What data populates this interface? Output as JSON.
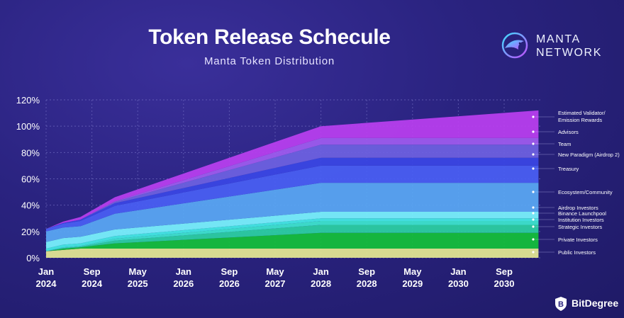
{
  "header": {
    "title": "Token Release Schecule",
    "subtitle": "Manta Token Distribution"
  },
  "logo": {
    "line1": "MANTA",
    "line2": "NETWORK"
  },
  "footer": {
    "brand": "BitDegree"
  },
  "colors": {
    "background": "#2a2380",
    "grid": "#8a86d6"
  },
  "chart_data": {
    "type": "area",
    "title": "Token Release Schecule",
    "subtitle": "Manta Token Distribution",
    "xlabel": "",
    "ylabel": "",
    "ylim": [
      0,
      120
    ],
    "yticks": [
      "0%",
      "20%",
      "40%",
      "60%",
      "80%",
      "100%",
      "120%"
    ],
    "xticks": [
      {
        "month": "Jan",
        "year": "2024",
        "t": 0
      },
      {
        "month": "Sep",
        "year": "2024",
        "t": 8
      },
      {
        "month": "May",
        "year": "2025",
        "t": 16
      },
      {
        "month": "Jan",
        "year": "2026",
        "t": 24
      },
      {
        "month": "Sep",
        "year": "2026",
        "t": 32
      },
      {
        "month": "May",
        "year": "2027",
        "t": 40
      },
      {
        "month": "Jan",
        "year": "2028",
        "t": 48
      },
      {
        "month": "Sep",
        "year": "2028",
        "t": 56
      },
      {
        "month": "May",
        "year": "2029",
        "t": 64
      },
      {
        "month": "Jan",
        "year": "2030",
        "t": 72
      },
      {
        "month": "Sep",
        "year": "2030",
        "t": 80
      }
    ],
    "x_months": [
      0,
      3,
      6,
      12,
      48,
      86
    ],
    "series": [
      {
        "name": "Public Investors",
        "color": "#e6ea92",
        "values": [
          5,
          6,
          7,
          7,
          7,
          7
        ]
      },
      {
        "name": "Private Investors",
        "color": "#14c23a",
        "values": [
          0,
          1,
          1,
          4,
          12,
          12
        ]
      },
      {
        "name": "Strategic Investors",
        "color": "#2bd3a3",
        "values": [
          0,
          0.5,
          0.5,
          2,
          6,
          6
        ]
      },
      {
        "name": "Institution Investors",
        "color": "#3ee8cf",
        "values": [
          0,
          0.5,
          0.5,
          1.5,
          3,
          3
        ]
      },
      {
        "name": "Binance Launchpool",
        "color": "#44eee6",
        "values": [
          2,
          2,
          2,
          2,
          2,
          2
        ]
      },
      {
        "name": "Airdrop Investors",
        "color": "#7bf6ff",
        "values": [
          5,
          5,
          5,
          5,
          5,
          5
        ]
      },
      {
        "name": "Ecosystem/Community",
        "color": "#5aa9f5",
        "values": [
          8,
          8,
          8,
          12,
          22,
          22
        ]
      },
      {
        "name": "Treasury",
        "color": "#4a60f5",
        "values": [
          2,
          3,
          4,
          6,
          13,
          13
        ]
      },
      {
        "name": "New Paradigm (Airdrop 2)",
        "color": "#3b46e6",
        "values": [
          0,
          0.5,
          1,
          2,
          6,
          6
        ]
      },
      {
        "name": "Team",
        "color": "#6f62e2",
        "values": [
          0,
          0,
          0,
          1,
          10,
          10
        ]
      },
      {
        "name": "Advisors",
        "color": "#a15cf0",
        "values": [
          0,
          0,
          0,
          0.5,
          5,
          5
        ]
      },
      {
        "name": "Estimated Validator/ Emission Rewards",
        "color": "#bb3ff0",
        "values": [
          0,
          1,
          2,
          3,
          9,
          21
        ]
      }
    ],
    "legend_position": "right"
  }
}
